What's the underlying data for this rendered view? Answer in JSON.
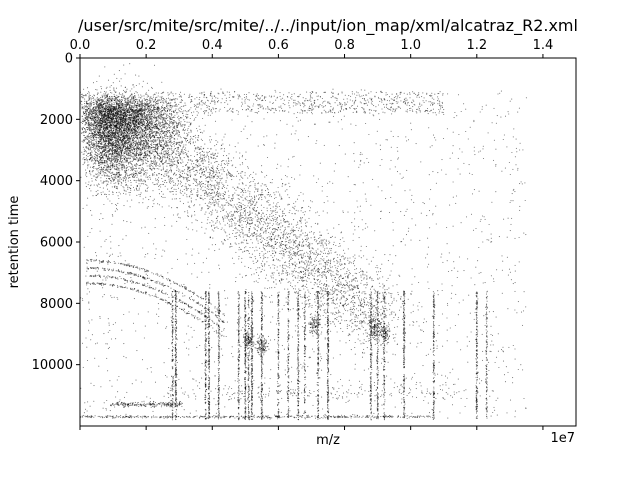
{
  "chart_data": {
    "type": "scatter",
    "title": "/user/src/mite/src/mite/../../input/ion_map/xml/alcatraz_R2.xml",
    "xlabel": "m/z",
    "ylabel": "retention time",
    "x_offset_label": "1e7",
    "xlim": [
      0,
      15000000
    ],
    "ylim": [
      12000,
      0
    ],
    "y_inverted": true,
    "grid": false,
    "point_color": "#000000",
    "top_axis": {
      "xlim": [
        0,
        1.5
      ],
      "ticks": [
        0.0,
        0.2,
        0.4,
        0.6,
        0.8,
        1.0,
        1.2,
        1.4
      ],
      "tick_labels": [
        "0.0",
        "0.2",
        "0.4",
        "0.6",
        "0.8",
        "1.0",
        "1.2",
        "1.4"
      ]
    },
    "bottom_axis": {
      "ticks": [
        0,
        2000000,
        4000000,
        6000000,
        8000000,
        10000000,
        12000000,
        14000000
      ],
      "tick_labels": [
        "",
        "",
        "",
        "",
        "",
        "",
        "",
        ""
      ]
    },
    "y_axis": {
      "ticks": [
        0,
        2000,
        4000,
        6000,
        8000,
        10000
      ],
      "tick_labels": [
        "0",
        "2000",
        "4000",
        "6000",
        "8000",
        "10000"
      ]
    },
    "point_density_description_values": {
      "dense_cluster": {
        "x_range": [
          0,
          5000000
        ],
        "y_range": [
          1000,
          5500
        ]
      },
      "upper_band_retention_time": 1300,
      "lower_band_retention_time": 11700,
      "vertical_streak_positions_1e7": [
        0.28,
        0.29,
        0.38,
        0.39,
        0.42,
        0.48,
        0.5,
        0.51,
        0.52,
        0.55,
        0.6,
        0.63,
        0.66,
        0.68,
        0.72,
        0.75,
        0.88,
        0.9,
        0.92,
        0.98,
        1.07,
        1.2,
        1.23
      ],
      "approx_point_count": 15000
    }
  }
}
